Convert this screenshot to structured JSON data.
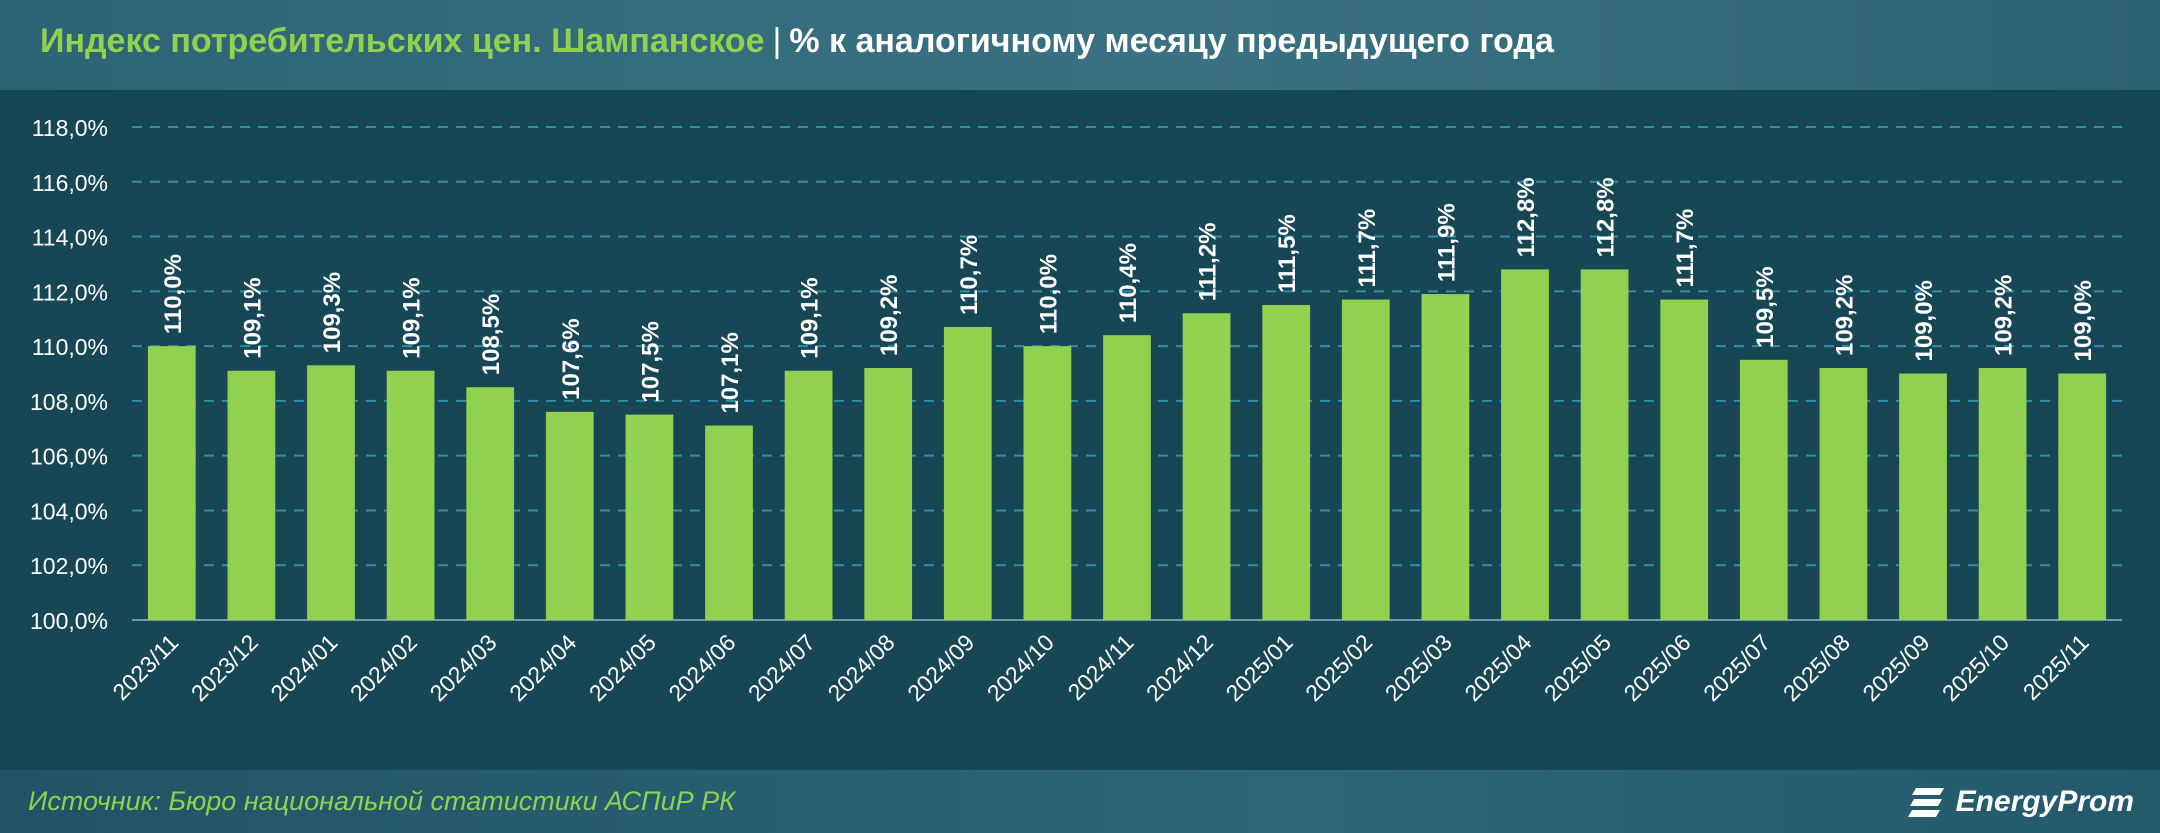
{
  "header": {
    "title_main": "Индекс потребительских цен. Шампанское",
    "title_separator": "|",
    "title_sub": "% к аналогичному месяцу предыдущего года"
  },
  "footer": {
    "source": "Источник: Бюро национальной статистики АСПиР РК",
    "logo_text": "EnergyProm"
  },
  "colors": {
    "bar": "#92d050",
    "grid": "#2e8fa8",
    "axis_text": "#ffffff",
    "title_accent": "#92d050"
  },
  "chart_data": {
    "type": "bar",
    "categories": [
      "2023/11",
      "2023/12",
      "2024/01",
      "2024/02",
      "2024/03",
      "2024/04",
      "2024/05",
      "2024/06",
      "2024/07",
      "2024/08",
      "2024/09",
      "2024/10",
      "2024/11",
      "2024/12",
      "2025/01",
      "2025/02",
      "2025/03",
      "2025/04",
      "2025/05",
      "2025/06",
      "2025/07",
      "2025/08",
      "2025/09",
      "2025/10",
      "2025/11"
    ],
    "values": [
      110.0,
      109.1,
      109.3,
      109.1,
      108.5,
      107.6,
      107.5,
      107.1,
      109.1,
      109.2,
      110.7,
      110.0,
      110.4,
      111.2,
      111.5,
      111.7,
      111.9,
      112.8,
      112.8,
      111.7,
      109.5,
      109.2,
      109.0,
      109.2,
      109.0
    ],
    "data_labels": [
      "110,0%",
      "109,1%",
      "109,3%",
      "109,1%",
      "108,5%",
      "107,6%",
      "107,5%",
      "107,1%",
      "109,1%",
      "109,2%",
      "110,7%",
      "110,0%",
      "110,4%",
      "111,2%",
      "111,5%",
      "111,7%",
      "111,9%",
      "112,8%",
      "112,8%",
      "111,7%",
      "109,5%",
      "109,2%",
      "109,0%",
      "109,2%",
      "109,0%"
    ],
    "ylim": [
      100,
      118
    ],
    "yticks": [
      100,
      102,
      104,
      106,
      108,
      110,
      112,
      114,
      116,
      118
    ],
    "ytick_labels": [
      "100,0%",
      "102,0%",
      "104,0%",
      "106,0%",
      "108,0%",
      "110,0%",
      "112,0%",
      "114,0%",
      "116,0%",
      "118,0%"
    ],
    "grid": true,
    "legend": "none"
  }
}
